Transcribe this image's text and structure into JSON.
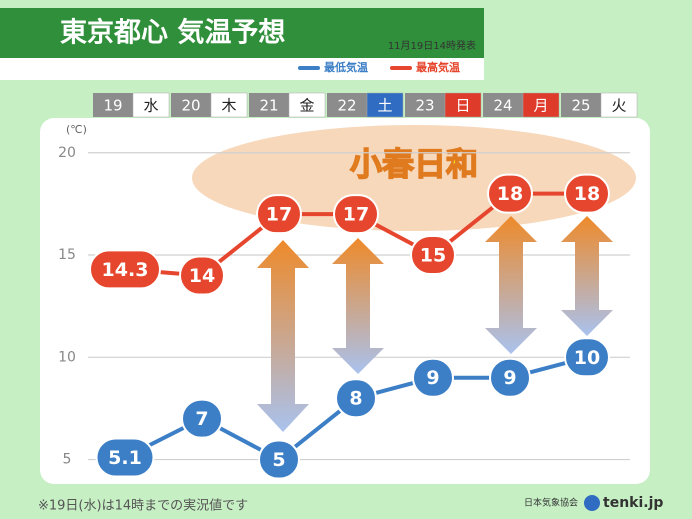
{
  "chart_data": {
    "type": "line",
    "title": "東京都心 気温予想",
    "issued": "11月19日14時発表",
    "categories": [
      "19",
      "20",
      "21",
      "22",
      "23",
      "24",
      "25"
    ],
    "weekdays": [
      "水",
      "木",
      "金",
      "土",
      "日",
      "月",
      "火"
    ],
    "weekday_colors": [
      "#ffffff",
      "#ffffff",
      "#ffffff",
      "#2f6cc2",
      "#de3b2b",
      "#de3b2b",
      "#ffffff"
    ],
    "unit": "(℃)",
    "annotation": "小春日和",
    "footnote": "※19日(水)は14時までの実況値です",
    "source": "日本気象協会",
    "logo": "tenki.jp",
    "ylim": [
      4,
      21.7
    ],
    "yticks": [
      5,
      10,
      15,
      20
    ],
    "grid": true,
    "series": [
      {
        "name": "最低気温",
        "color": "#3c7fc6",
        "values": [
          5.1,
          7,
          5,
          8,
          9,
          9,
          10
        ]
      },
      {
        "name": "最高気温",
        "color": "#e6462d",
        "values": [
          14.3,
          14,
          17,
          17,
          15,
          18,
          18
        ]
      }
    ]
  }
}
